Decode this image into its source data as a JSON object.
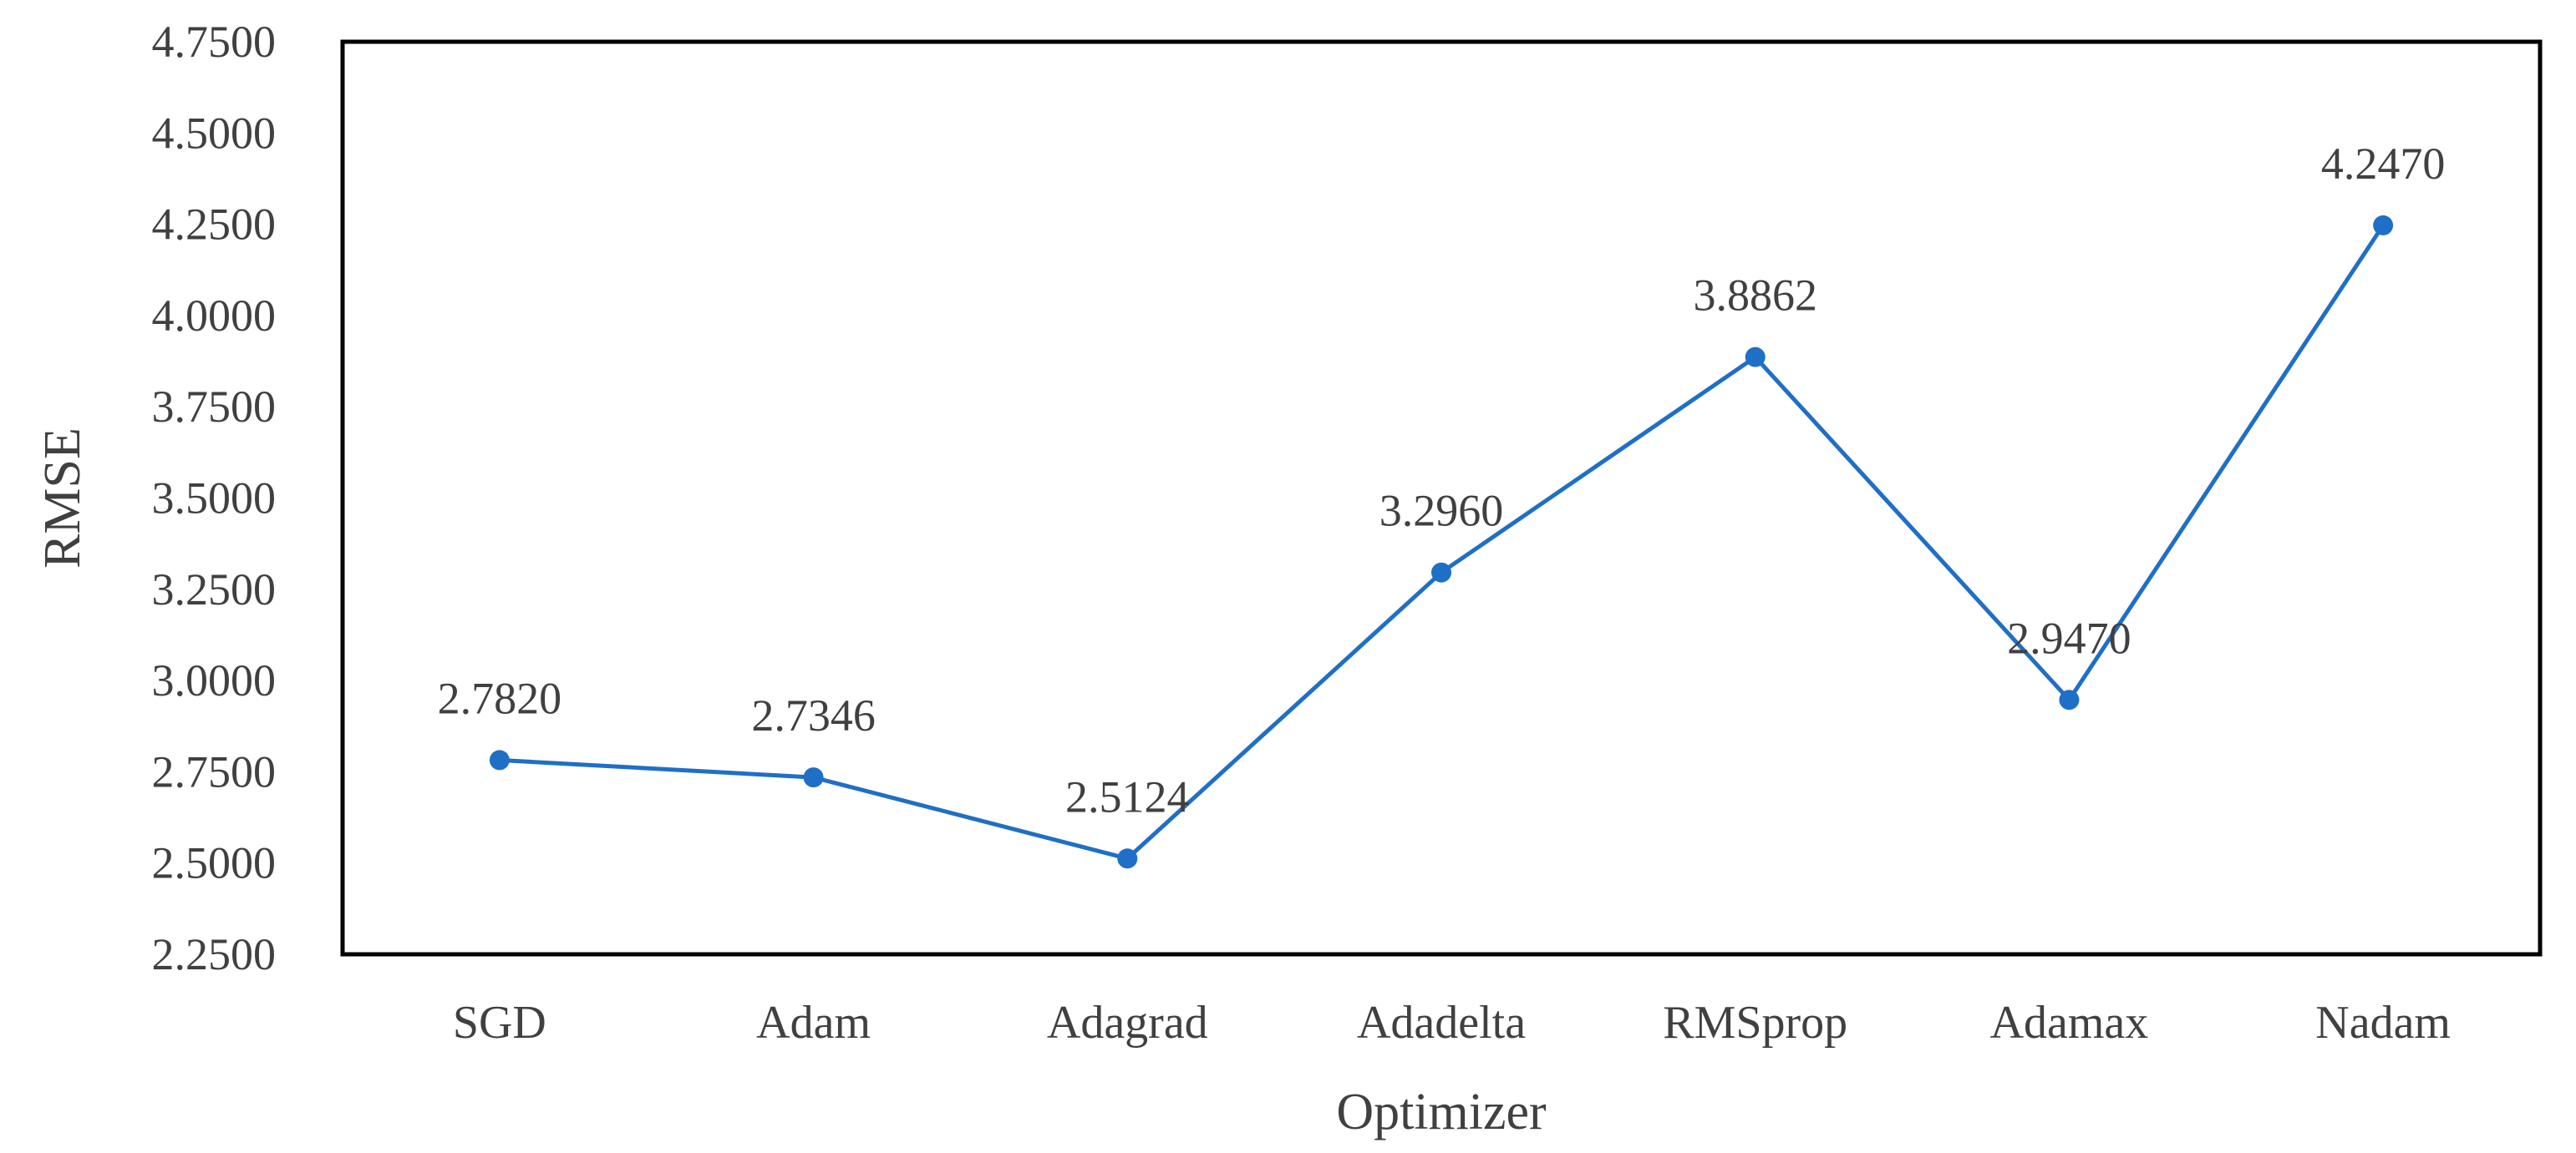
{
  "chart_data": {
    "type": "line",
    "title": "",
    "xlabel": "Optimizer",
    "ylabel": "RMSE",
    "categories": [
      "SGD",
      "Adam",
      "Adagrad",
      "Adadelta",
      "RMSprop",
      "Adamax",
      "Nadam"
    ],
    "series": [
      {
        "values": [
          2.782,
          2.7346,
          2.5124,
          3.296,
          3.8862,
          2.947,
          4.247
        ],
        "data_labels": [
          "2.7820",
          "2.7346",
          "2.5124",
          "3.2960",
          "3.8862",
          "2.9470",
          "4.2470"
        ]
      }
    ],
    "ylim": [
      2.25,
      4.75
    ],
    "yticks": [
      2.25,
      2.5,
      2.75,
      3.0,
      3.25,
      3.5,
      3.75,
      4.0,
      4.25,
      4.5,
      4.75
    ],
    "ytick_labels": [
      "2.2500",
      "2.5000",
      "2.7500",
      "3.0000",
      "3.2500",
      "3.5000",
      "3.7500",
      "4.0000",
      "4.2500",
      "4.5000",
      "4.7500"
    ],
    "grid": false,
    "legend": "none",
    "line_color": "#1f6fc6",
    "marker_color": "#1f6fc6",
    "frame_color": "#000000"
  }
}
